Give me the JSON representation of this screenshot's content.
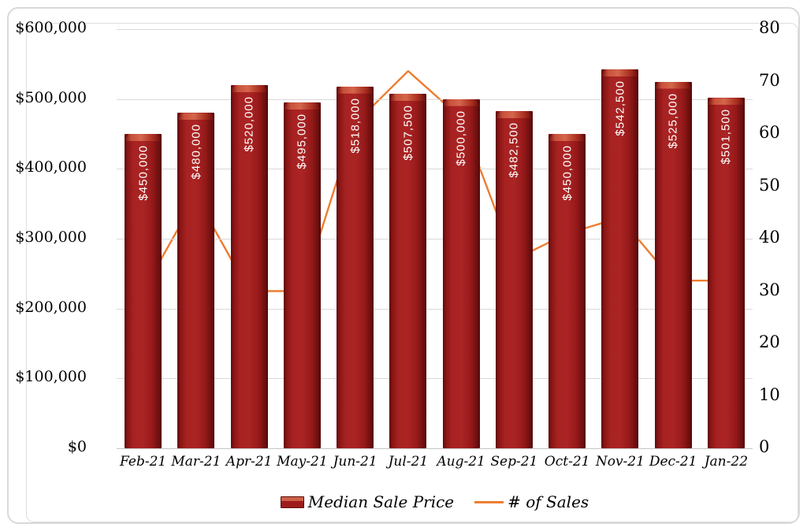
{
  "chart_data": {
    "type": "combo",
    "categories": [
      "Feb-21",
      "Mar-21",
      "Apr-21",
      "May-21",
      "Jun-21",
      "Jul-21",
      "Aug-21",
      "Sep-21",
      "Oct-21",
      "Nov-21",
      "Dec-21",
      "Jan-22"
    ],
    "series": [
      {
        "name": "Median Sale Price",
        "type": "bar",
        "axis": "left",
        "values": [
          450000,
          480000,
          520000,
          495000,
          518000,
          507500,
          500000,
          482500,
          450000,
          542500,
          525000,
          501500
        ],
        "labels": [
          "$450,000",
          "$480,000",
          "$520,000",
          "$495,000",
          "$518,000",
          "$507,500",
          "$500,000",
          "$482,500",
          "$450,000",
          "$542,500",
          "$525,000",
          "$501,500"
        ]
      },
      {
        "name": "# of Sales",
        "type": "line",
        "axis": "right",
        "values": [
          30,
          48,
          30,
          30,
          62,
          72,
          63,
          36,
          41,
          44,
          32,
          32
        ]
      }
    ],
    "left_axis": {
      "min": 0,
      "max": 600000,
      "ticks_top_down": [
        "$600,000",
        "$500,000",
        "$400,000",
        "$300,000",
        "$200,000",
        "$100,000",
        "$0"
      ]
    },
    "right_axis": {
      "min": 0,
      "max": 80,
      "ticks_top_down": [
        "80",
        "70",
        "60",
        "50",
        "40",
        "30",
        "20",
        "10",
        "0"
      ]
    },
    "grid": true,
    "legend_position": "bottom"
  },
  "legend": {
    "bar_label": "Median Sale Price",
    "line_label": "# of Sales"
  },
  "colors": {
    "bar": "#9e1b1b",
    "bar_edge": "#5e0b0b",
    "bar_highlight": "#cd6048",
    "line": "#ed7d31",
    "grid": "#d9d9d9",
    "text": "#000000"
  }
}
